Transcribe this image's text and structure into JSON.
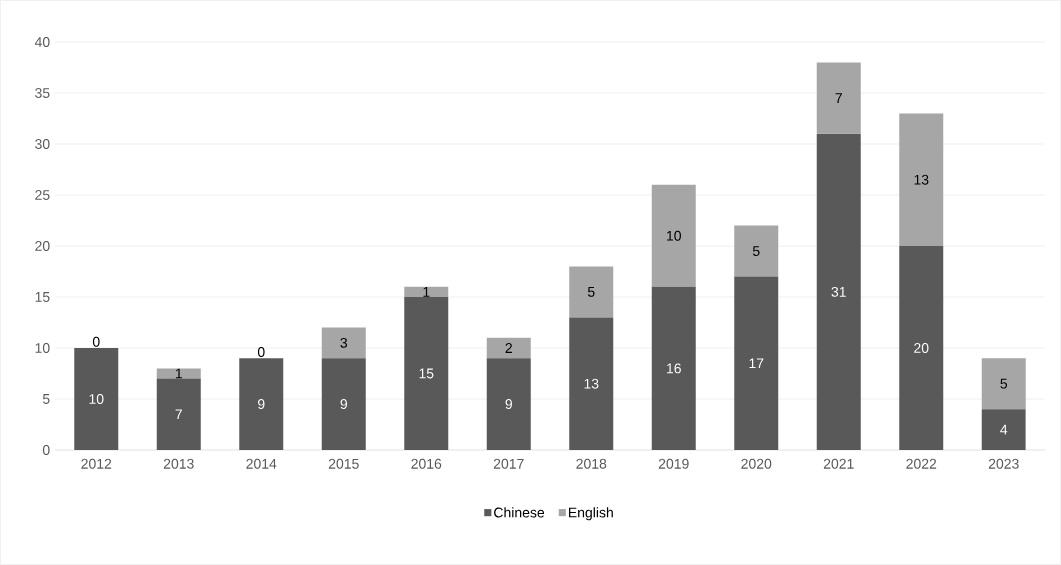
{
  "chart_data": {
    "type": "bar",
    "stacked": true,
    "categories": [
      "2012",
      "2013",
      "2014",
      "2015",
      "2016",
      "2017",
      "2018",
      "2019",
      "2020",
      "2021",
      "2022",
      "2023"
    ],
    "series": [
      {
        "name": "Chinese",
        "color": "#595959",
        "values": [
          10,
          7,
          9,
          9,
          15,
          9,
          13,
          16,
          17,
          31,
          20,
          4
        ]
      },
      {
        "name": "English",
        "color": "#a6a6a6",
        "values": [
          0,
          1,
          0,
          3,
          1,
          2,
          5,
          10,
          5,
          7,
          13,
          5
        ]
      }
    ],
    "ylim": [
      0,
      40
    ],
    "yticks": [
      0,
      5,
      10,
      15,
      20,
      25,
      30,
      35,
      40
    ],
    "grid": "y",
    "legend": "bottom",
    "data_labels": true
  }
}
